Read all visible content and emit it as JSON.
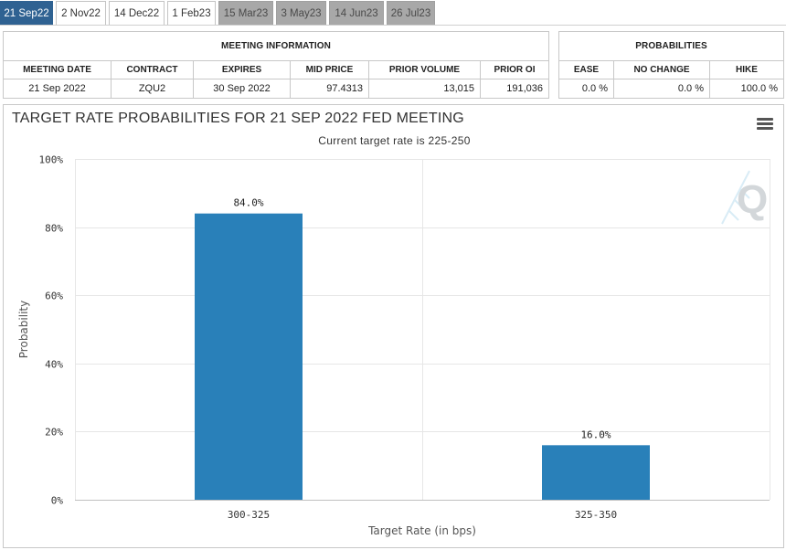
{
  "tabs": [
    {
      "label": "21 Sep22",
      "state": "active"
    },
    {
      "label": "2 Nov22",
      "state": "normal"
    },
    {
      "label": "14 Dec22",
      "state": "normal"
    },
    {
      "label": "1 Feb23",
      "state": "normal"
    },
    {
      "label": "15 Mar23",
      "state": "gray"
    },
    {
      "label": "3 May23",
      "state": "gray"
    },
    {
      "label": "14 Jun23",
      "state": "gray"
    },
    {
      "label": "26 Jul23",
      "state": "gray"
    }
  ],
  "meeting_info": {
    "title": "MEETING INFORMATION",
    "headers": [
      "MEETING DATE",
      "CONTRACT",
      "EXPIRES",
      "MID PRICE",
      "PRIOR VOLUME",
      "PRIOR OI"
    ],
    "row": [
      "21 Sep 2022",
      "ZQU2",
      "30 Sep 2022",
      "97.4313",
      "13,015",
      "191,036"
    ]
  },
  "probabilities": {
    "title": "PROBABILITIES",
    "headers": [
      "EASE",
      "NO CHANGE",
      "HIKE"
    ],
    "row": [
      "0.0 %",
      "0.0 %",
      "100.0 %"
    ]
  },
  "chart": {
    "title": "TARGET RATE PROBABILITIES FOR 21 SEP 2022 FED MEETING",
    "subtitle": "Current target rate is 225-250",
    "watermark": "Q",
    "menu_icon": "hamburger-menu-icon"
  },
  "chart_data": {
    "type": "bar",
    "categories": [
      "300-325",
      "325-350"
    ],
    "values": [
      84.0,
      16.0
    ],
    "data_labels": [
      "84.0%",
      "16.0%"
    ],
    "xlabel": "Target Rate (in bps)",
    "ylabel": "Probability",
    "ylim": [
      0,
      100
    ],
    "yticks": [
      "0%",
      "20%",
      "40%",
      "60%",
      "80%",
      "100%"
    ],
    "bar_color": "#2980b9",
    "grid": true
  }
}
